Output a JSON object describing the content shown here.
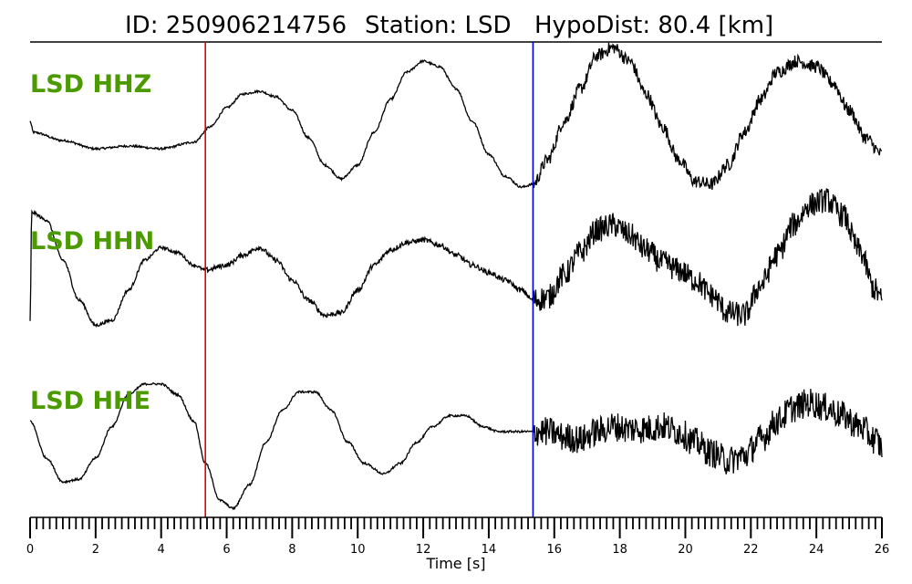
{
  "title": {
    "id_text": "ID: 250906214756",
    "station_text": "Station: LSD",
    "hypodist_text": "HypoDist:    80.4 [km]"
  },
  "chart_data": {
    "type": "line",
    "xlabel": "Time [s]",
    "xlim": [
      0,
      26
    ],
    "major_ticks": [
      0,
      2,
      4,
      6,
      8,
      10,
      12,
      14,
      16,
      18,
      20,
      22,
      24,
      26
    ],
    "minor_tick_step": 0.2,
    "label_color": "#4a9a00",
    "trace_color": "#000000",
    "markers": [
      {
        "time": 5.35,
        "color": "#e00000"
      },
      {
        "time": 15.35,
        "color": "#0000e0"
      }
    ],
    "series": [
      {
        "name": "LSD HHZ",
        "points": [
          [
            0,
            0.0
          ],
          [
            0.1,
            -0.2
          ],
          [
            1,
            -0.35
          ],
          [
            2,
            -0.5
          ],
          [
            3,
            -0.45
          ],
          [
            4,
            -0.5
          ],
          [
            5,
            -0.38
          ],
          [
            5.5,
            -0.1
          ],
          [
            6,
            0.25
          ],
          [
            6.5,
            0.5
          ],
          [
            7,
            0.55
          ],
          [
            7.5,
            0.45
          ],
          [
            8,
            0.2
          ],
          [
            8.5,
            -0.3
          ],
          [
            9,
            -0.8
          ],
          [
            9.5,
            -1.05
          ],
          [
            10,
            -0.8
          ],
          [
            10.5,
            -0.2
          ],
          [
            11,
            0.4
          ],
          [
            11.5,
            0.9
          ],
          [
            12,
            1.1
          ],
          [
            12.5,
            1.0
          ],
          [
            13,
            0.6
          ],
          [
            13.5,
            0.0
          ],
          [
            14,
            -0.6
          ],
          [
            14.5,
            -1.0
          ],
          [
            15,
            -1.2
          ],
          [
            15.35,
            -1.15
          ],
          [
            15.8,
            -0.7
          ],
          [
            16.3,
            0.0
          ],
          [
            16.8,
            0.6
          ],
          [
            17.3,
            1.2
          ],
          [
            17.8,
            1.35
          ],
          [
            18.3,
            1.1
          ],
          [
            18.8,
            0.5
          ],
          [
            19.3,
            -0.1
          ],
          [
            19.8,
            -0.7
          ],
          [
            20.3,
            -1.1
          ],
          [
            20.8,
            -1.15
          ],
          [
            21.3,
            -0.8
          ],
          [
            21.8,
            -0.2
          ],
          [
            22.3,
            0.4
          ],
          [
            22.8,
            0.9
          ],
          [
            23.4,
            1.1
          ],
          [
            24,
            1.0
          ],
          [
            24.5,
            0.7
          ],
          [
            25,
            0.2
          ],
          [
            25.5,
            -0.3
          ],
          [
            26,
            -0.6
          ]
        ],
        "noise": [
          0.02,
          0.02,
          0.12
        ]
      },
      {
        "name": "LSD HHN",
        "points": [
          [
            0,
            -1.0
          ],
          [
            0.05,
            1.15
          ],
          [
            0.5,
            1.0
          ],
          [
            1,
            0.2
          ],
          [
            1.5,
            -0.6
          ],
          [
            2,
            -1.1
          ],
          [
            2.5,
            -1.0
          ],
          [
            3,
            -0.4
          ],
          [
            3.5,
            0.2
          ],
          [
            4,
            0.45
          ],
          [
            4.5,
            0.35
          ],
          [
            5,
            0.1
          ],
          [
            5.35,
            0.0
          ],
          [
            6,
            0.1
          ],
          [
            6.5,
            0.3
          ],
          [
            7,
            0.45
          ],
          [
            7.5,
            0.2
          ],
          [
            8,
            -0.2
          ],
          [
            8.5,
            -0.6
          ],
          [
            9,
            -0.9
          ],
          [
            9.5,
            -0.85
          ],
          [
            10,
            -0.4
          ],
          [
            10.5,
            0.1
          ],
          [
            11,
            0.4
          ],
          [
            11.5,
            0.55
          ],
          [
            12,
            0.6
          ],
          [
            12.5,
            0.5
          ],
          [
            13,
            0.3
          ],
          [
            13.5,
            0.1
          ],
          [
            14,
            -0.05
          ],
          [
            14.5,
            -0.2
          ],
          [
            15,
            -0.4
          ],
          [
            15.35,
            -0.6
          ],
          [
            15.8,
            -0.55
          ],
          [
            16.3,
            -0.1
          ],
          [
            16.8,
            0.35
          ],
          [
            17.3,
            0.8
          ],
          [
            17.8,
            0.9
          ],
          [
            18.3,
            0.7
          ],
          [
            18.8,
            0.4
          ],
          [
            19.3,
            0.15
          ],
          [
            19.8,
            0.0
          ],
          [
            20.3,
            -0.2
          ],
          [
            20.8,
            -0.5
          ],
          [
            21.3,
            -0.85
          ],
          [
            21.8,
            -0.9
          ],
          [
            22.3,
            -0.3
          ],
          [
            22.8,
            0.3
          ],
          [
            23.3,
            0.9
          ],
          [
            23.8,
            1.3
          ],
          [
            24.3,
            1.4
          ],
          [
            24.8,
            1.1
          ],
          [
            25.3,
            0.4
          ],
          [
            25.8,
            -0.4
          ],
          [
            26,
            -0.6
          ]
        ],
        "noise": [
          0.03,
          0.05,
          0.25
        ]
      },
      {
        "name": "LSD HHE",
        "points": [
          [
            0,
            0.2
          ],
          [
            0.5,
            -0.5
          ],
          [
            1,
            -0.95
          ],
          [
            1.5,
            -0.9
          ],
          [
            2,
            -0.5
          ],
          [
            2.5,
            0.1
          ],
          [
            3,
            0.7
          ],
          [
            3.5,
            0.9
          ],
          [
            4,
            0.9
          ],
          [
            4.5,
            0.7
          ],
          [
            5,
            0.2
          ],
          [
            5.35,
            -0.6
          ],
          [
            5.8,
            -1.3
          ],
          [
            6.2,
            -1.45
          ],
          [
            6.7,
            -1.0
          ],
          [
            7.2,
            -0.2
          ],
          [
            7.7,
            0.4
          ],
          [
            8.2,
            0.75
          ],
          [
            8.7,
            0.75
          ],
          [
            9.2,
            0.4
          ],
          [
            9.7,
            -0.2
          ],
          [
            10.2,
            -0.6
          ],
          [
            10.8,
            -0.8
          ],
          [
            11.3,
            -0.6
          ],
          [
            11.8,
            -0.2
          ],
          [
            12.3,
            0.1
          ],
          [
            12.8,
            0.3
          ],
          [
            13.3,
            0.3
          ],
          [
            13.8,
            0.1
          ],
          [
            14.3,
            0.0
          ],
          [
            14.8,
            0.0
          ],
          [
            15.35,
            0.0
          ],
          [
            15.8,
            0.0
          ],
          [
            16.3,
            -0.1
          ],
          [
            16.8,
            -0.15
          ],
          [
            17.3,
            0.0
          ],
          [
            17.8,
            0.1
          ],
          [
            18.3,
            0.05
          ],
          [
            18.8,
            0.05
          ],
          [
            19.3,
            0.1
          ],
          [
            19.8,
            0.0
          ],
          [
            20.3,
            -0.2
          ],
          [
            20.8,
            -0.4
          ],
          [
            21.3,
            -0.55
          ],
          [
            21.8,
            -0.45
          ],
          [
            22.3,
            -0.15
          ],
          [
            22.8,
            0.2
          ],
          [
            23.3,
            0.45
          ],
          [
            23.8,
            0.55
          ],
          [
            24.3,
            0.45
          ],
          [
            24.8,
            0.3
          ],
          [
            25.3,
            0.1
          ],
          [
            25.8,
            -0.15
          ],
          [
            26,
            -0.3
          ]
        ],
        "noise": [
          0.02,
          0.02,
          0.28
        ]
      }
    ]
  }
}
